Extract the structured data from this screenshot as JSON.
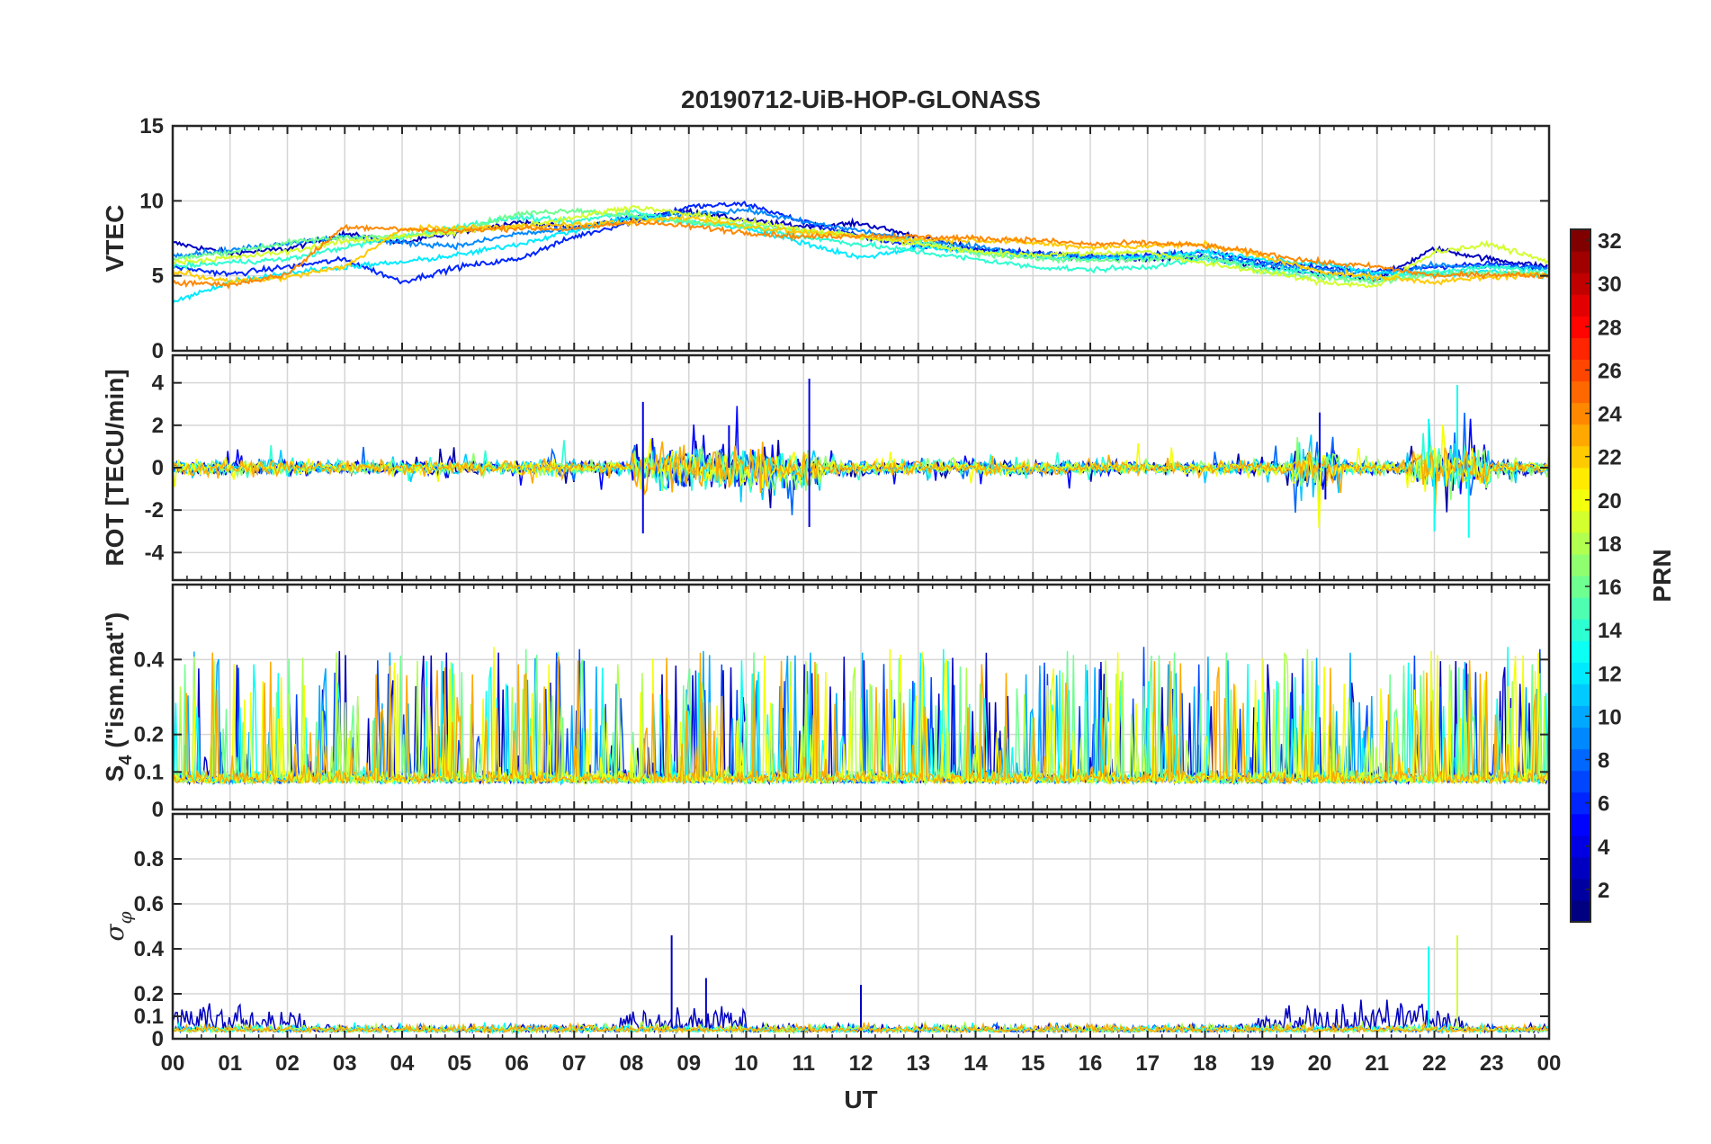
{
  "figure": {
    "title": "20190712-UiB-HOP-GLONASS",
    "xlabel": "UT"
  },
  "chart_data": {
    "type": "line",
    "title": "20190712-UiB-HOP-GLONASS",
    "xlabel": "UT",
    "x_unit": "hour (UT)",
    "xlim": [
      0,
      24
    ],
    "xticks": [
      0,
      1,
      2,
      3,
      4,
      5,
      6,
      7,
      8,
      9,
      10,
      11,
      12,
      13,
      14,
      15,
      16,
      17,
      18,
      19,
      20,
      21,
      22,
      23,
      24
    ],
    "xtick_labels": [
      "00",
      "01",
      "02",
      "03",
      "04",
      "05",
      "06",
      "07",
      "08",
      "09",
      "10",
      "11",
      "12",
      "13",
      "14",
      "15",
      "16",
      "17",
      "18",
      "19",
      "20",
      "21",
      "22",
      "23",
      "00"
    ],
    "grid": true,
    "colorbar": {
      "label": "PRN",
      "colormap": "jet",
      "range": [
        1,
        32
      ],
      "ticks": [
        2,
        4,
        6,
        8,
        10,
        12,
        14,
        16,
        18,
        20,
        22,
        24,
        26,
        28,
        30,
        32
      ],
      "placement": "right"
    },
    "panels": [
      {
        "id": "vtec",
        "ylabel": "VTEC",
        "ylim": [
          0,
          15
        ],
        "yticks": [
          0,
          5,
          10,
          15
        ],
        "typical_range": [
          3,
          10
        ],
        "peak_window_hours": [
          8,
          10
        ],
        "series": [
          {
            "prn": 3,
            "x": [
              0,
              1,
              2,
              3,
              4,
              5,
              6,
              7,
              8,
              9,
              10,
              11,
              12,
              13,
              14,
              15,
              16,
              17,
              18,
              19,
              20,
              21,
              22,
              23,
              24
            ],
            "y": [
              7.2,
              6.5,
              6.8,
              7.8,
              7.2,
              7.9,
              8.6,
              8.2,
              8.8,
              9.3,
              8.7,
              8.3,
              8.5,
              7.6,
              6.8,
              6.5,
              6.2,
              6.1,
              6.2,
              5.6,
              5.1,
              4.8,
              6.8,
              6.1,
              5.6
            ]
          },
          {
            "prn": 6,
            "x": [
              0,
              1,
              2,
              3,
              4,
              5,
              6,
              7,
              8,
              9,
              10,
              11,
              12,
              13,
              14,
              15,
              16,
              17,
              18,
              19,
              20,
              21,
              22,
              23,
              24
            ],
            "y": [
              5.6,
              5.1,
              5.6,
              6.1,
              4.6,
              5.6,
              6.1,
              7.6,
              8.6,
              9.6,
              9.8,
              8.6,
              7.6,
              7.0,
              6.7,
              6.5,
              6.3,
              6.4,
              6.6,
              5.9,
              5.6,
              5.3,
              5.6,
              5.8,
              5.5
            ]
          },
          {
            "prn": 9,
            "x": [
              0,
              1,
              2,
              3,
              4,
              5,
              6,
              7,
              8,
              9,
              10,
              11,
              12,
              13,
              14,
              15,
              16,
              17,
              18,
              19,
              20,
              21,
              22,
              23,
              24
            ],
            "y": [
              6.4,
              6.7,
              7.2,
              7.6,
              7.2,
              7.0,
              7.8,
              8.1,
              8.9,
              9.1,
              9.4,
              8.6,
              8.0,
              7.3,
              7.0,
              6.4,
              6.3,
              6.2,
              6.3,
              5.8,
              5.4,
              5.1,
              5.7,
              5.6,
              5.5
            ]
          },
          {
            "prn": 12,
            "x": [
              0,
              1,
              2,
              3,
              4,
              5,
              6,
              7,
              8,
              9,
              10,
              11,
              12,
              13,
              14,
              15,
              16,
              17,
              18,
              19,
              20,
              21,
              22,
              23,
              24
            ],
            "y": [
              3.2,
              4.6,
              5.2,
              5.6,
              5.9,
              6.4,
              7.1,
              8.0,
              8.9,
              8.6,
              8.2,
              7.2,
              6.2,
              6.9,
              6.6,
              6.3,
              6.1,
              6.3,
              6.6,
              6.1,
              5.8,
              5.2,
              5.1,
              5.3,
              5.0
            ]
          },
          {
            "prn": 14,
            "x": [
              0,
              1,
              2,
              3,
              4,
              5,
              6,
              7,
              8,
              9,
              10,
              11,
              12,
              13,
              14,
              15,
              16,
              17,
              18,
              19,
              20,
              21,
              22,
              23,
              24
            ],
            "y": [
              5.6,
              5.9,
              6.1,
              6.9,
              7.6,
              8.3,
              8.9,
              8.6,
              9.3,
              8.6,
              8.3,
              7.6,
              7.1,
              6.6,
              6.1,
              5.6,
              5.4,
              5.6,
              6.1,
              5.6,
              5.1,
              4.8,
              5.3,
              5.6,
              5.3
            ]
          },
          {
            "prn": 16,
            "x": [
              0,
              1,
              2,
              3,
              4,
              5,
              6,
              7,
              8,
              9,
              10,
              11,
              12,
              13,
              14,
              15,
              16,
              17,
              18,
              19,
              20,
              21,
              22,
              23,
              24
            ],
            "y": [
              6.1,
              6.6,
              7.2,
              7.6,
              7.6,
              8.1,
              9.1,
              9.4,
              9.0,
              8.6,
              8.4,
              8.0,
              7.6,
              7.3,
              6.5,
              6.2,
              6.0,
              6.1,
              6.3,
              5.3,
              4.9,
              4.6,
              5.1,
              5.2,
              5.1
            ]
          },
          {
            "prn": 19,
            "x": [
              0,
              1,
              2,
              3,
              4,
              5,
              6,
              7,
              8,
              9,
              10,
              11,
              12,
              13,
              14,
              15,
              16,
              17,
              18,
              19,
              20,
              21,
              22,
              23,
              24
            ],
            "y": [
              5.9,
              6.2,
              6.6,
              7.3,
              7.6,
              7.9,
              8.3,
              8.9,
              9.6,
              9.1,
              8.6,
              8.1,
              7.6,
              7.1,
              6.6,
              6.4,
              6.5,
              6.6,
              5.8,
              5.3,
              4.6,
              4.3,
              6.6,
              7.1,
              5.9
            ]
          },
          {
            "prn": 22,
            "x": [
              0,
              1,
              2,
              3,
              4,
              5,
              6,
              7,
              8,
              9,
              10,
              11,
              12,
              13,
              14,
              15,
              16,
              17,
              18,
              19,
              20,
              21,
              22,
              23,
              24
            ],
            "y": [
              5.3,
              4.6,
              4.9,
              5.6,
              8.1,
              8.2,
              8.3,
              8.4,
              8.6,
              8.9,
              8.3,
              7.9,
              7.6,
              7.4,
              7.4,
              7.2,
              6.9,
              7.0,
              7.1,
              6.3,
              5.3,
              4.9,
              4.6,
              4.9,
              5.1
            ]
          },
          {
            "prn": 24,
            "x": [
              0,
              1,
              2,
              3,
              4,
              5,
              6,
              7,
              8,
              9,
              10,
              11,
              12,
              13,
              14,
              15,
              16,
              17,
              18,
              19,
              20,
              21,
              22,
              23,
              24
            ],
            "y": [
              4.6,
              4.4,
              5.1,
              8.3,
              8.1,
              8.0,
              8.2,
              8.1,
              8.6,
              8.3,
              7.9,
              7.6,
              7.7,
              7.6,
              7.5,
              7.4,
              7.1,
              7.2,
              7.0,
              6.5,
              5.9,
              5.6,
              5.0,
              5.1,
              5.0
            ]
          }
        ]
      },
      {
        "id": "rot",
        "ylabel": "ROT [TECU/min]",
        "ylim": [
          -5.3,
          5.3
        ],
        "yticks": [
          -4,
          -2,
          0,
          2,
          4
        ],
        "baseline": 0,
        "typical_spread": 0.3,
        "notable_spikes": [
          {
            "x": 8.2,
            "y": 3.1
          },
          {
            "x": 8.2,
            "y": -3.1
          },
          {
            "x": 9.7,
            "y": 2.0
          },
          {
            "x": 11.1,
            "y": 4.2
          },
          {
            "x": 11.1,
            "y": -2.8
          },
          {
            "x": 20.0,
            "y": 2.6
          },
          {
            "x": 20.1,
            "y": -1.5
          },
          {
            "x": 21.9,
            "y": 2.3
          },
          {
            "x": 22.0,
            "y": -3.0
          },
          {
            "x": 22.4,
            "y": 3.9
          },
          {
            "x": 22.6,
            "y": -3.3
          }
        ]
      },
      {
        "id": "s4",
        "ylabel": "S4 (\"ism.mat\")",
        "ylabel_main": "S",
        "ylabel_sub": "4",
        "ylabel_rest": " (\"ism.mat\")",
        "ylim": [
          0,
          0.6
        ],
        "yticks": [
          0,
          0.1,
          0.2,
          0.4
        ],
        "ytick_labels": [
          "0",
          "0.1",
          "0.2",
          "0.4"
        ],
        "floor": 0.07,
        "typical_peaks": [
          0.2,
          0.45
        ],
        "max": 0.6
      },
      {
        "id": "sigma_phi",
        "ylabel": "σφ",
        "ylabel_main": "σ",
        "ylabel_sub": "φ",
        "ylim": [
          0,
          1
        ],
        "yticks": [
          0,
          0.1,
          0.2,
          0.4,
          0.6,
          0.8
        ],
        "ytick_labels": [
          "0",
          "0.1",
          "0.2",
          "0.4",
          "0.6",
          "0.8"
        ],
        "floor": 0.03,
        "notable_spikes": [
          {
            "x": 8.7,
            "y": 0.46
          },
          {
            "x": 9.3,
            "y": 0.27
          },
          {
            "x": 12.0,
            "y": 0.24
          },
          {
            "x": 21.9,
            "y": 0.41
          },
          {
            "x": 22.4,
            "y": 0.46
          }
        ]
      }
    ]
  }
}
